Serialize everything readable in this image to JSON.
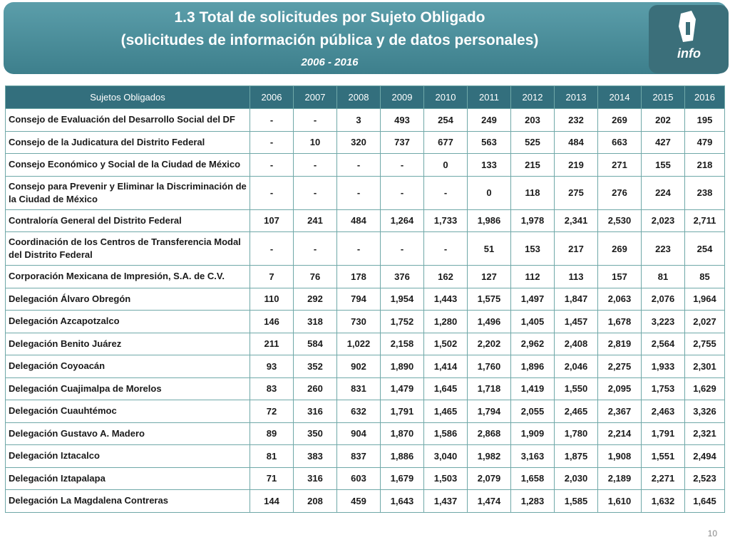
{
  "header": {
    "title": "1.3 Total de solicitudes por Sujeto Obligado",
    "subtitle": "(solicitudes de información pública y de datos personales)",
    "period": "2006 - 2016",
    "logo": "info"
  },
  "table": {
    "columns": [
      "Sujetos Obligados",
      "2006",
      "2007",
      "2008",
      "2009",
      "2010",
      "2011",
      "2012",
      "2013",
      "2014",
      "2015",
      "2016"
    ],
    "rows": [
      [
        "Consejo de Evaluación del Desarrollo Social del DF",
        "-",
        "-",
        "3",
        "493",
        "254",
        "249",
        "203",
        "232",
        "269",
        "202",
        "195"
      ],
      [
        "Consejo de la Judicatura del Distrito Federal",
        "-",
        "10",
        "320",
        "737",
        "677",
        "563",
        "525",
        "484",
        "663",
        "427",
        "479"
      ],
      [
        "Consejo Económico y Social de la Ciudad de México",
        "-",
        "-",
        "-",
        "-",
        "0",
        "133",
        "215",
        "219",
        "271",
        "155",
        "218"
      ],
      [
        "Consejo para Prevenir y Eliminar la Discriminación de la Ciudad de México",
        "-",
        "-",
        "-",
        "-",
        "-",
        "0",
        "118",
        "275",
        "276",
        "224",
        "238"
      ],
      [
        "Contraloría General del Distrito Federal",
        "107",
        "241",
        "484",
        "1,264",
        "1,733",
        "1,986",
        "1,978",
        "2,341",
        "2,530",
        "2,023",
        "2,711"
      ],
      [
        "Coordinación de los Centros de Transferencia Modal del Distrito Federal",
        "-",
        "-",
        "-",
        "-",
        "-",
        "51",
        "153",
        "217",
        "269",
        "223",
        "254"
      ],
      [
        "Corporación Mexicana de Impresión, S.A. de C.V.",
        "7",
        "76",
        "178",
        "376",
        "162",
        "127",
        "112",
        "113",
        "157",
        "81",
        "85"
      ],
      [
        "Delegación Álvaro Obregón",
        "110",
        "292",
        "794",
        "1,954",
        "1,443",
        "1,575",
        "1,497",
        "1,847",
        "2,063",
        "2,076",
        "1,964"
      ],
      [
        "Delegación Azcapotzalco",
        "146",
        "318",
        "730",
        "1,752",
        "1,280",
        "1,496",
        "1,405",
        "1,457",
        "1,678",
        "3,223",
        "2,027"
      ],
      [
        "Delegación Benito Juárez",
        "211",
        "584",
        "1,022",
        "2,158",
        "1,502",
        "2,202",
        "2,962",
        "2,408",
        "2,819",
        "2,564",
        "2,755"
      ],
      [
        "Delegación Coyoacán",
        "93",
        "352",
        "902",
        "1,890",
        "1,414",
        "1,760",
        "1,896",
        "2,046",
        "2,275",
        "1,933",
        "2,301"
      ],
      [
        "Delegación Cuajimalpa de Morelos",
        "83",
        "260",
        "831",
        "1,479",
        "1,645",
        "1,718",
        "1,419",
        "1,550",
        "2,095",
        "1,753",
        "1,629"
      ],
      [
        "Delegación Cuauhtémoc",
        "72",
        "316",
        "632",
        "1,791",
        "1,465",
        "1,794",
        "2,055",
        "2,465",
        "2,367",
        "2,463",
        "3,326"
      ],
      [
        "Delegación Gustavo A. Madero",
        "89",
        "350",
        "904",
        "1,870",
        "1,586",
        "2,868",
        "1,909",
        "1,780",
        "2,214",
        "1,791",
        "2,321"
      ],
      [
        "Delegación Iztacalco",
        "81",
        "383",
        "837",
        "1,886",
        "3,040",
        "1,982",
        "3,163",
        "1,875",
        "1,908",
        "1,551",
        "2,494"
      ],
      [
        "Delegación Iztapalapa",
        "71",
        "316",
        "603",
        "1,679",
        "1,503",
        "2,079",
        "1,658",
        "2,030",
        "2,189",
        "2,271",
        "2,523"
      ],
      [
        "Delegación La Magdalena Contreras",
        "144",
        "208",
        "459",
        "1,643",
        "1,437",
        "1,474",
        "1,283",
        "1,585",
        "1,610",
        "1,632",
        "1,645"
      ]
    ]
  },
  "page_number": "10"
}
